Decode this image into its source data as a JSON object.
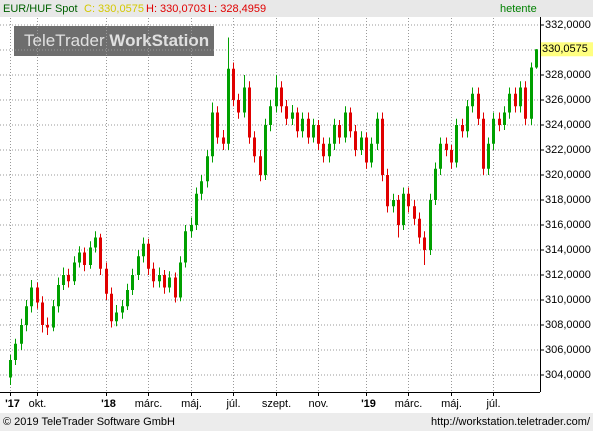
{
  "chart_data": {
    "type": "candlestick",
    "header": {
      "symbol": "EUR/HUF Spot",
      "close": "C: 330,0575",
      "high": "H: 330,0703",
      "low": "L: 328,4959",
      "period": "hetente"
    },
    "logo": {
      "part1": "TeleTrader",
      "part2": "WorkStation"
    },
    "footer": {
      "left": "© 2019 TeleTrader Software GmbH",
      "right": "http://workstation.teletrader.com/"
    },
    "last_label": "330,0575",
    "up_color": "#00a000",
    "down_color": "#e00000",
    "ylim": [
      302.64,
      332.56
    ],
    "yticks": [
      {
        "value": 304,
        "label": "304,0000"
      },
      {
        "value": 306,
        "label": "306,0000"
      },
      {
        "value": 308,
        "label": "308,0000"
      },
      {
        "value": 310,
        "label": "310,0000"
      },
      {
        "value": 312,
        "label": "312,0000"
      },
      {
        "value": 314,
        "label": "314,0000"
      },
      {
        "value": 316,
        "label": "316,0000"
      },
      {
        "value": 318,
        "label": "318,0000"
      },
      {
        "value": 320,
        "label": "320,0000"
      },
      {
        "value": 322,
        "label": "322,0000"
      },
      {
        "value": 324,
        "label": "324,0000"
      },
      {
        "value": 326,
        "label": "326,0000"
      },
      {
        "value": 328,
        "label": "328,0000"
      },
      {
        "value": 330,
        "label": "330,0000"
      },
      {
        "value": 332,
        "label": "332,0000"
      }
    ],
    "grid": true,
    "categories": [
      "'17",
      null,
      null,
      null,
      null,
      "okt.",
      null,
      null,
      null,
      null,
      null,
      null,
      null,
      null,
      null,
      null,
      null,
      null,
      "'18",
      null,
      null,
      null,
      null,
      null,
      null,
      null,
      "márc.",
      null,
      null,
      null,
      null,
      null,
      null,
      null,
      "máj.",
      null,
      null,
      null,
      null,
      null,
      null,
      null,
      "júl.",
      null,
      null,
      null,
      null,
      null,
      null,
      null,
      "szept.",
      null,
      null,
      null,
      null,
      null,
      null,
      null,
      "nov.",
      null,
      null,
      null,
      null,
      null,
      null,
      null,
      null,
      "'19",
      null,
      null,
      null,
      null,
      null,
      null,
      null,
      "márc.",
      null,
      null,
      null,
      null,
      null,
      null,
      null,
      "máj.",
      null,
      null,
      null,
      null,
      null,
      null,
      null,
      "júl.",
      null,
      null,
      null,
      null,
      null,
      null,
      null,
      null
    ],
    "ohlc": [
      [
        303.8,
        305.6,
        303.2,
        305.2
      ],
      [
        305.2,
        306.9,
        304.8,
        306.5
      ],
      [
        306.5,
        308.5,
        306.0,
        308.0
      ],
      [
        308.0,
        310.0,
        307.5,
        309.5
      ],
      [
        309.5,
        311.6,
        309.0,
        311.0
      ],
      [
        311.0,
        311.4,
        309.3,
        309.8
      ],
      [
        309.8,
        310.3,
        307.4,
        308.0
      ],
      [
        308.0,
        308.6,
        307.2,
        307.8
      ],
      [
        307.8,
        310.0,
        307.5,
        309.5
      ],
      [
        309.5,
        311.8,
        309.0,
        311.2
      ],
      [
        311.2,
        312.6,
        310.8,
        312.0
      ],
      [
        312.0,
        312.5,
        311.0,
        311.5
      ],
      [
        311.5,
        313.5,
        311.2,
        313.0
      ],
      [
        313.0,
        314.3,
        312.6,
        313.8
      ],
      [
        313.8,
        314.2,
        312.3,
        312.8
      ],
      [
        312.8,
        314.7,
        312.5,
        314.2
      ],
      [
        314.2,
        315.5,
        313.8,
        315.0
      ],
      [
        315.0,
        315.3,
        312.0,
        312.5
      ],
      [
        312.5,
        313.0,
        310.0,
        310.5
      ],
      [
        310.5,
        311.0,
        307.8,
        308.3
      ],
      [
        308.3,
        309.6,
        307.9,
        309.0
      ],
      [
        309.0,
        310.0,
        308.5,
        309.5
      ],
      [
        309.5,
        311.3,
        309.2,
        310.8
      ],
      [
        310.8,
        312.5,
        310.4,
        312.0
      ],
      [
        312.0,
        314.0,
        311.6,
        313.5
      ],
      [
        313.5,
        315.0,
        313.0,
        314.5
      ],
      [
        314.5,
        314.9,
        312.0,
        312.5
      ],
      [
        312.5,
        313.0,
        311.0,
        311.5
      ],
      [
        311.5,
        312.6,
        311.0,
        312.0
      ],
      [
        312.0,
        312.4,
        310.5,
        311.0
      ],
      [
        311.0,
        312.3,
        310.6,
        311.8
      ],
      [
        311.8,
        312.2,
        309.8,
        310.2
      ],
      [
        310.2,
        313.5,
        309.9,
        313.0
      ],
      [
        313.0,
        316.0,
        312.6,
        315.5
      ],
      [
        315.5,
        316.6,
        315.0,
        316.0
      ],
      [
        316.0,
        319.0,
        315.6,
        318.5
      ],
      [
        318.5,
        320.0,
        318.0,
        319.5
      ],
      [
        319.5,
        322.0,
        319.0,
        321.5
      ],
      [
        321.5,
        325.8,
        321.0,
        325.0
      ],
      [
        325.0,
        325.5,
        322.5,
        323.0
      ],
      [
        323.0,
        323.6,
        322.0,
        322.5
      ],
      [
        322.5,
        331.0,
        322.0,
        328.5
      ],
      [
        328.5,
        329.0,
        325.5,
        326.0
      ],
      [
        326.0,
        326.5,
        324.5,
        325.0
      ],
      [
        325.0,
        328.0,
        324.6,
        327.0
      ],
      [
        327.0,
        327.5,
        322.5,
        323.0
      ],
      [
        323.0,
        323.5,
        321.0,
        321.5
      ],
      [
        321.5,
        322.0,
        319.5,
        320.0
      ],
      [
        320.0,
        324.5,
        319.6,
        324.0
      ],
      [
        324.0,
        326.0,
        323.5,
        325.5
      ],
      [
        325.5,
        328.0,
        325.0,
        327.0
      ],
      [
        327.0,
        327.5,
        325.0,
        325.5
      ],
      [
        325.5,
        326.0,
        324.0,
        324.5
      ],
      [
        324.5,
        325.6,
        324.0,
        325.0
      ],
      [
        325.0,
        325.4,
        323.0,
        323.5
      ],
      [
        323.5,
        325.0,
        323.0,
        324.5
      ],
      [
        324.5,
        325.0,
        322.5,
        323.0
      ],
      [
        323.0,
        324.5,
        322.6,
        324.0
      ],
      [
        324.0,
        324.4,
        322.0,
        322.5
      ],
      [
        322.5,
        323.0,
        321.0,
        321.5
      ],
      [
        321.5,
        323.0,
        321.0,
        322.5
      ],
      [
        322.5,
        324.5,
        322.0,
        324.0
      ],
      [
        324.0,
        324.4,
        322.5,
        323.0
      ],
      [
        323.0,
        325.5,
        322.6,
        325.0
      ],
      [
        325.0,
        325.4,
        323.0,
        323.5
      ],
      [
        323.5,
        324.0,
        321.5,
        322.0
      ],
      [
        322.0,
        323.5,
        321.6,
        323.0
      ],
      [
        323.0,
        323.4,
        320.5,
        321.0
      ],
      [
        321.0,
        323.0,
        320.6,
        322.5
      ],
      [
        322.5,
        325.0,
        322.0,
        324.5
      ],
      [
        324.5,
        325.0,
        319.5,
        320.0
      ],
      [
        320.0,
        320.5,
        317.0,
        317.5
      ],
      [
        317.5,
        318.5,
        317.0,
        318.0
      ],
      [
        318.0,
        318.4,
        315.0,
        316.0
      ],
      [
        316.0,
        319.0,
        315.6,
        318.5
      ],
      [
        318.5,
        319.0,
        317.0,
        317.5
      ],
      [
        317.5,
        318.0,
        316.0,
        316.5
      ],
      [
        316.5,
        317.0,
        314.5,
        315.0
      ],
      [
        315.0,
        315.5,
        312.8,
        314.0
      ],
      [
        314.0,
        318.5,
        313.6,
        318.0
      ],
      [
        318.0,
        321.0,
        317.6,
        320.5
      ],
      [
        320.5,
        323.0,
        320.0,
        322.5
      ],
      [
        322.5,
        323.0,
        321.5,
        322.0
      ],
      [
        322.0,
        322.4,
        320.5,
        321.0
      ],
      [
        321.0,
        324.5,
        320.6,
        324.0
      ],
      [
        324.0,
        324.5,
        323.0,
        323.5
      ],
      [
        323.5,
        326.0,
        323.0,
        325.5
      ],
      [
        325.5,
        327.0,
        325.0,
        326.5
      ],
      [
        326.5,
        327.0,
        324.0,
        324.5
      ],
      [
        324.5,
        325.0,
        320.0,
        320.5
      ],
      [
        320.5,
        323.0,
        320.0,
        322.5
      ],
      [
        322.5,
        325.0,
        322.0,
        324.5
      ],
      [
        324.5,
        325.0,
        323.5,
        324.0
      ],
      [
        324.0,
        325.5,
        323.6,
        325.0
      ],
      [
        325.0,
        327.0,
        324.5,
        326.5
      ],
      [
        326.5,
        327.0,
        325.0,
        325.5
      ],
      [
        325.5,
        327.5,
        325.0,
        327.0
      ],
      [
        327.0,
        327.5,
        324.0,
        324.5
      ],
      [
        324.5,
        329.0,
        324.0,
        328.6
      ],
      [
        328.6,
        330.0703,
        328.4959,
        330.0575
      ]
    ]
  }
}
